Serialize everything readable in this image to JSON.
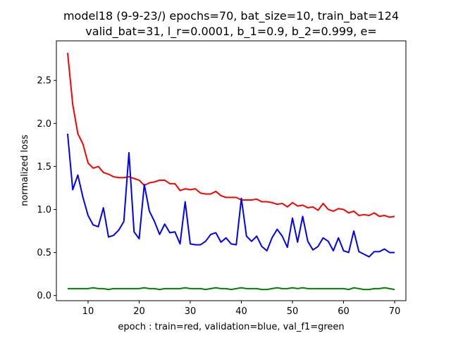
{
  "chart_data": {
    "type": "line",
    "title_lines": [
      "model18 (9-9-23/) epochs=70, bat_size=10, train_bat=124",
      "valid_bat=31, l_r=0.0001, b_1=0.9, b_2=0.999, e="
    ],
    "xlabel": "epoch : train=red, validation=blue, val_f1=green",
    "ylabel": "normalized loss",
    "xlim": [
      3.8,
      72.2
    ],
    "ylim": [
      -0.06,
      2.96
    ],
    "xticks": [
      10,
      20,
      30,
      40,
      50,
      60,
      70
    ],
    "yticks": [
      0.0,
      0.5,
      1.0,
      1.5,
      2.0,
      2.5
    ],
    "ytick_labels": [
      "0.0",
      "0.5",
      "1.0",
      "1.5",
      "2.0",
      "2.5"
    ],
    "grid": false,
    "x": [
      6,
      7,
      8,
      9,
      10,
      11,
      12,
      13,
      14,
      15,
      16,
      17,
      18,
      19,
      20,
      21,
      22,
      23,
      24,
      25,
      26,
      27,
      28,
      29,
      30,
      31,
      32,
      33,
      34,
      35,
      36,
      37,
      38,
      39,
      40,
      41,
      42,
      43,
      44,
      45,
      46,
      47,
      48,
      49,
      50,
      51,
      52,
      53,
      54,
      55,
      56,
      57,
      58,
      59,
      60,
      61,
      62,
      63,
      64,
      65,
      66,
      67,
      68,
      69,
      70
    ],
    "series": [
      {
        "color": "#ff0000",
        "values": [
          2.82,
          2.22,
          1.88,
          1.76,
          1.54,
          1.48,
          1.5,
          1.43,
          1.41,
          1.38,
          1.37,
          1.37,
          1.38,
          1.36,
          1.34,
          1.28,
          1.31,
          1.32,
          1.34,
          1.34,
          1.3,
          1.3,
          1.22,
          1.24,
          1.23,
          1.24,
          1.19,
          1.18,
          1.18,
          1.21,
          1.16,
          1.14,
          1.14,
          1.14,
          1.11,
          1.11,
          1.11,
          1.12,
          1.09,
          1.09,
          1.08,
          1.06,
          1.07,
          1.03,
          1.08,
          1.04,
          1.05,
          1.02,
          1.03,
          0.99,
          1.07,
          1.0,
          0.98,
          1.01,
          1.0,
          0.96,
          0.98,
          0.93,
          0.94,
          0.93,
          0.96,
          0.92,
          0.93,
          0.91,
          0.92
        ]
      },
      {
        "color": "#0000ff",
        "values": [
          1.88,
          1.23,
          1.4,
          1.14,
          0.93,
          0.82,
          0.8,
          1.02,
          0.68,
          0.7,
          0.76,
          0.86,
          1.66,
          0.74,
          0.66,
          1.29,
          0.98,
          0.86,
          0.71,
          0.83,
          0.73,
          0.74,
          0.6,
          1.09,
          0.6,
          0.59,
          0.59,
          0.63,
          0.71,
          0.73,
          0.62,
          0.67,
          0.6,
          0.59,
          1.13,
          0.69,
          0.63,
          0.69,
          0.57,
          0.52,
          0.67,
          0.77,
          0.69,
          0.56,
          0.9,
          0.62,
          0.92,
          0.63,
          0.53,
          0.57,
          0.67,
          0.63,
          0.52,
          0.67,
          0.52,
          0.5,
          0.75,
          0.51,
          0.48,
          0.45,
          0.51,
          0.51,
          0.54,
          0.5,
          0.5
        ]
      },
      {
        "color": "#008000",
        "values": [
          0.08,
          0.08,
          0.08,
          0.08,
          0.08,
          0.09,
          0.08,
          0.08,
          0.07,
          0.08,
          0.08,
          0.08,
          0.08,
          0.08,
          0.08,
          0.09,
          0.08,
          0.08,
          0.07,
          0.08,
          0.08,
          0.08,
          0.08,
          0.09,
          0.08,
          0.08,
          0.08,
          0.07,
          0.08,
          0.09,
          0.08,
          0.08,
          0.07,
          0.08,
          0.09,
          0.08,
          0.08,
          0.08,
          0.07,
          0.07,
          0.08,
          0.09,
          0.08,
          0.08,
          0.09,
          0.08,
          0.09,
          0.08,
          0.08,
          0.08,
          0.08,
          0.08,
          0.08,
          0.08,
          0.08,
          0.07,
          0.09,
          0.08,
          0.07,
          0.07,
          0.08,
          0.08,
          0.09,
          0.08,
          0.07
        ]
      }
    ]
  }
}
